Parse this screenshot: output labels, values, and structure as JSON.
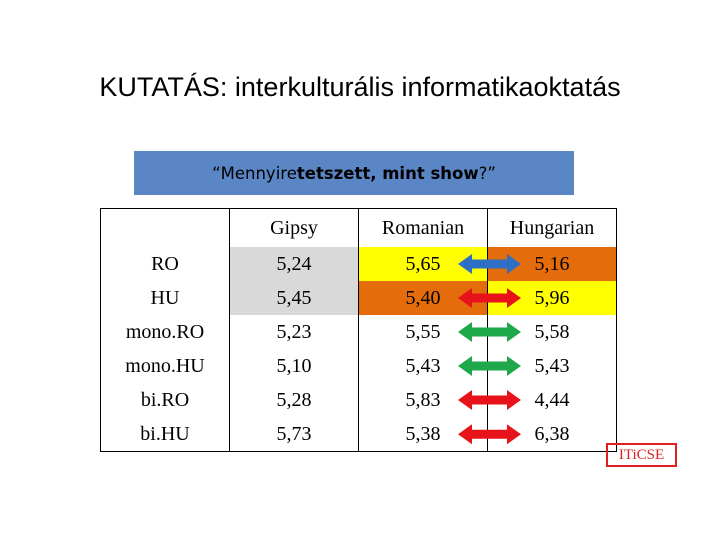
{
  "title": "KUTATÁS: interkulturális informatikaoktatás",
  "banner": {
    "pre": "“Mennyire ",
    "bold": "tetszett, mint show",
    "post": "?”"
  },
  "table": {
    "columns": [
      "",
      "Gipsy",
      "Romanian",
      "Hungarian"
    ],
    "rows": [
      {
        "label": "RO",
        "gipsy": "5,24",
        "romanian": "5,65",
        "hungarian": "5,16",
        "arrow": "blue",
        "gipsy_bg": "#d9d9d9",
        "romanian_bg": "#ffff00",
        "hungarian_bg": "#e46c0a"
      },
      {
        "label": "HU",
        "gipsy": "5,45",
        "romanian": "5,40",
        "hungarian": "5,96",
        "arrow": "red",
        "gipsy_bg": "#d9d9d9",
        "romanian_bg": "#e46c0a",
        "hungarian_bg": "#ffff00"
      },
      {
        "label": "mono.RO",
        "gipsy": "5,23",
        "romanian": "5,55",
        "hungarian": "5,58",
        "arrow": "green"
      },
      {
        "label": "mono.HU",
        "gipsy": "5,10",
        "romanian": "5,43",
        "hungarian": "5,43",
        "arrow": "green"
      },
      {
        "label": "bi.RO",
        "gipsy": "5,28",
        "romanian": "5,83",
        "hungarian": "4,44",
        "arrow": "red"
      },
      {
        "label": "bi.HU",
        "gipsy": "5,73",
        "romanian": "5,38",
        "hungarian": "6,38",
        "arrow": "red"
      }
    ]
  },
  "arrow_colors": {
    "blue": "#2e6fc6",
    "red": "#e8121a",
    "green": "#1fa84a"
  },
  "badge": "ITiCSE"
}
